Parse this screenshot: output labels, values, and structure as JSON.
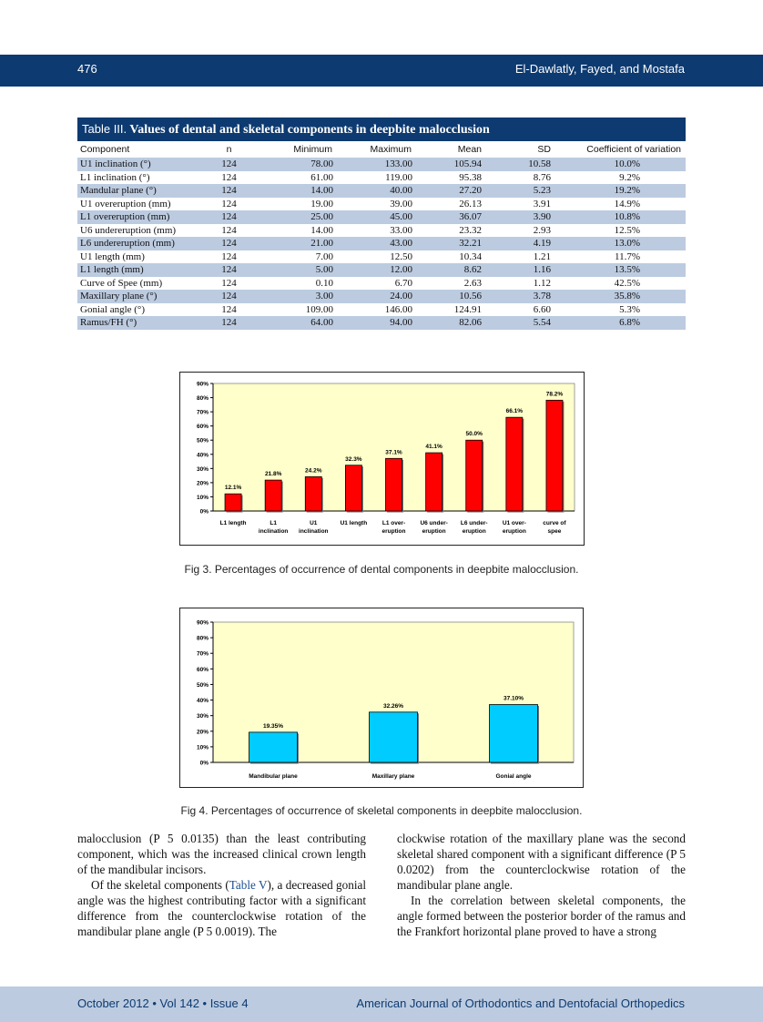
{
  "header": {
    "page_number": "476",
    "authors": "El-Dawlatly, Fayed, and Mostafa"
  },
  "table": {
    "label": "Table III.",
    "title": "Values of dental and skeletal components in deepbite malocclusion",
    "columns": [
      "Component",
      "n",
      "Minimum",
      "Maximum",
      "Mean",
      "SD",
      "Coefficient of variation"
    ],
    "rows": [
      [
        "U1 inclination (°)",
        "124",
        "78.00",
        "133.00",
        "105.94",
        "10.58",
        "10.0%"
      ],
      [
        "L1 inclination (°)",
        "124",
        "61.00",
        "119.00",
        "95.38",
        "8.76",
        "9.2%"
      ],
      [
        "Mandular plane (°)",
        "124",
        "14.00",
        "40.00",
        "27.20",
        "5.23",
        "19.2%"
      ],
      [
        "U1 overeruption (mm)",
        "124",
        "19.00",
        "39.00",
        "26.13",
        "3.91",
        "14.9%"
      ],
      [
        "L1 overeruption (mm)",
        "124",
        "25.00",
        "45.00",
        "36.07",
        "3.90",
        "10.8%"
      ],
      [
        "U6 undereruption (mm)",
        "124",
        "14.00",
        "33.00",
        "23.32",
        "2.93",
        "12.5%"
      ],
      [
        "L6 undereruption (mm)",
        "124",
        "21.00",
        "43.00",
        "32.21",
        "4.19",
        "13.0%"
      ],
      [
        "U1 length (mm)",
        "124",
        "7.00",
        "12.50",
        "10.34",
        "1.21",
        "11.7%"
      ],
      [
        "L1 length (mm)",
        "124",
        "5.00",
        "12.00",
        "8.62",
        "1.16",
        "13.5%"
      ],
      [
        "Curve of Spee (mm)",
        "124",
        "0.10",
        "6.70",
        "2.63",
        "1.12",
        "42.5%"
      ],
      [
        "Maxillary plane (°)",
        "124",
        "3.00",
        "24.00",
        "10.56",
        "3.78",
        "35.8%"
      ],
      [
        "Gonial angle (°)",
        "124",
        "109.00",
        "146.00",
        "124.91",
        "6.60",
        "5.3%"
      ],
      [
        "Ramus/FH (°)",
        "124",
        "64.00",
        "94.00",
        "82.06",
        "5.54",
        "6.8%"
      ]
    ]
  },
  "chart_data": [
    {
      "type": "bar",
      "title": "",
      "categories": [
        [
          "L1 length"
        ],
        [
          "L1",
          "inclination"
        ],
        [
          "U1",
          "inclination"
        ],
        [
          "U1 length"
        ],
        [
          "L1 over-",
          "eruption"
        ],
        [
          "U6 under-",
          "eruption"
        ],
        [
          "L6 under-",
          "eruption"
        ],
        [
          "U1 over-",
          "eruption"
        ],
        [
          "curve of",
          "spee"
        ]
      ],
      "values": [
        12.1,
        21.8,
        24.2,
        32.3,
        37.1,
        41.1,
        50.0,
        66.1,
        78.2
      ],
      "data_labels": [
        "12.1%",
        "21.8%",
        "24.2%",
        "32.3%",
        "37.1%",
        "41.1%",
        "50.0%",
        "66.1%",
        "78.2%"
      ],
      "yticks": [
        "0%",
        "10%",
        "20%",
        "30%",
        "40%",
        "50%",
        "60%",
        "70%",
        "80%",
        "90%"
      ],
      "ylim": [
        0,
        90
      ],
      "grid": false,
      "bar_color": "#ff0000",
      "plot_bg": "#ffffcc",
      "caption": "Fig 3.  Percentages of occurrence of dental components in deepbite malocclusion."
    },
    {
      "type": "bar",
      "title": "",
      "categories": [
        [
          "Mandibular plane"
        ],
        [
          "Maxillary plane"
        ],
        [
          "Gonial angle"
        ]
      ],
      "values": [
        19.35,
        32.26,
        37.1
      ],
      "data_labels": [
        "19.35%",
        "32.26%",
        "37.10%"
      ],
      "yticks": [
        "0%",
        "10%",
        "20%",
        "30%",
        "40%",
        "50%",
        "60%",
        "70%",
        "80%",
        "90%"
      ],
      "ylim": [
        0,
        90
      ],
      "grid": false,
      "bar_color": "#00ccff",
      "plot_bg": "#ffffcc",
      "caption": "Fig 4.  Percentages of occurrence of skeletal components in deepbite malocclusion."
    }
  ],
  "body": {
    "left_p1": "malocclusion (P 5  0.0135) than the least contributing component, which was the increased clinical crown length of the mandibular incisors.",
    "left_p2_a": "Of the skeletal components (",
    "left_p2_ref": "Table V",
    "left_p2_b": "), a decreased gonial angle was the highest contributing factor with a significant difference from the counterclockwise rotation of the mandibular plane angle (P 5  0.0019). The",
    "right_p1": "clockwise rotation of the maxillary plane was the second skeletal shared component with a significant difference (P 5  0.0202) from the counterclockwise rotation of the mandibular plane angle.",
    "right_p2": "In the correlation between skeletal components, the angle formed between the posterior border of the ramus and the Frankfort horizontal plane proved to have a strong"
  },
  "footer": {
    "issue": "October 2012 • Vol 142 • Issue 4",
    "journal": "American Journal of Orthodontics and Dentofacial Orthopedics"
  }
}
